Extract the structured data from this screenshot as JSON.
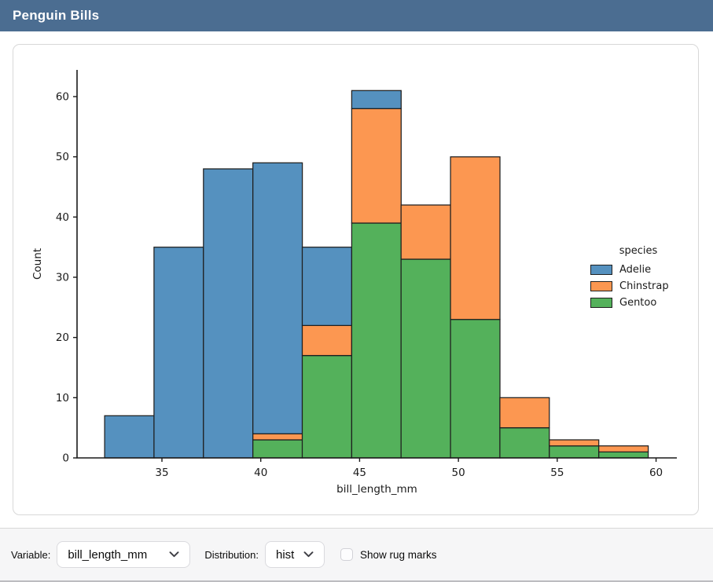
{
  "header": {
    "title": "Penguin Bills"
  },
  "chart_data": {
    "type": "bar",
    "subtype": "stacked-histogram",
    "xlabel": "bill_length_mm",
    "ylabel": "Count",
    "bin_edges": [
      32.1,
      34.6,
      37.1,
      39.6,
      42.1,
      44.6,
      47.1,
      49.6,
      52.1,
      54.6,
      57.1,
      59.6
    ],
    "series": [
      {
        "name": "Gentoo",
        "color": "#54b15b",
        "values": [
          0,
          0,
          0,
          3,
          17,
          39,
          33,
          23,
          5,
          2,
          1
        ]
      },
      {
        "name": "Chinstrap",
        "color": "#fc9751",
        "values": [
          0,
          0,
          0,
          1,
          5,
          19,
          9,
          27,
          5,
          1,
          1
        ]
      },
      {
        "name": "Adelie",
        "color": "#5591bf",
        "values": [
          7,
          35,
          48,
          45,
          13,
          3,
          0,
          0,
          0,
          0,
          0
        ]
      }
    ],
    "stack_order_note": "drawn bottom-to-top: Gentoo, Chinstrap, Adelie",
    "totals_per_bin": [
      7,
      35,
      48,
      49,
      35,
      61,
      42,
      50,
      10,
      3,
      2
    ],
    "xticks": [
      35,
      40,
      45,
      50,
      55,
      60
    ],
    "yticks": [
      0,
      10,
      20,
      30,
      40,
      50,
      60
    ],
    "xlim": [
      30.7,
      61.05
    ],
    "ylim": [
      0,
      64.4
    ],
    "grid": false,
    "legend": {
      "title": "species",
      "position": "right",
      "entries": [
        {
          "label": "Adelie",
          "color": "#5591bf"
        },
        {
          "label": "Chinstrap",
          "color": "#fc9751"
        },
        {
          "label": "Gentoo",
          "color": "#54b15b"
        }
      ]
    }
  },
  "controls": {
    "variable_label": "Variable:",
    "variable_value": "bill_length_mm",
    "distribution_label": "Distribution:",
    "distribution_value": "hist",
    "rug_label": "Show rug marks",
    "rug_checked": false
  },
  "colors": {
    "titlebar_bg": "#4b6d91",
    "titlebar_text": "#ffffff",
    "bar_edge": "#1f1f1f",
    "card_border": "#d8d8d8",
    "footer_bg": "#f6f6f7"
  }
}
